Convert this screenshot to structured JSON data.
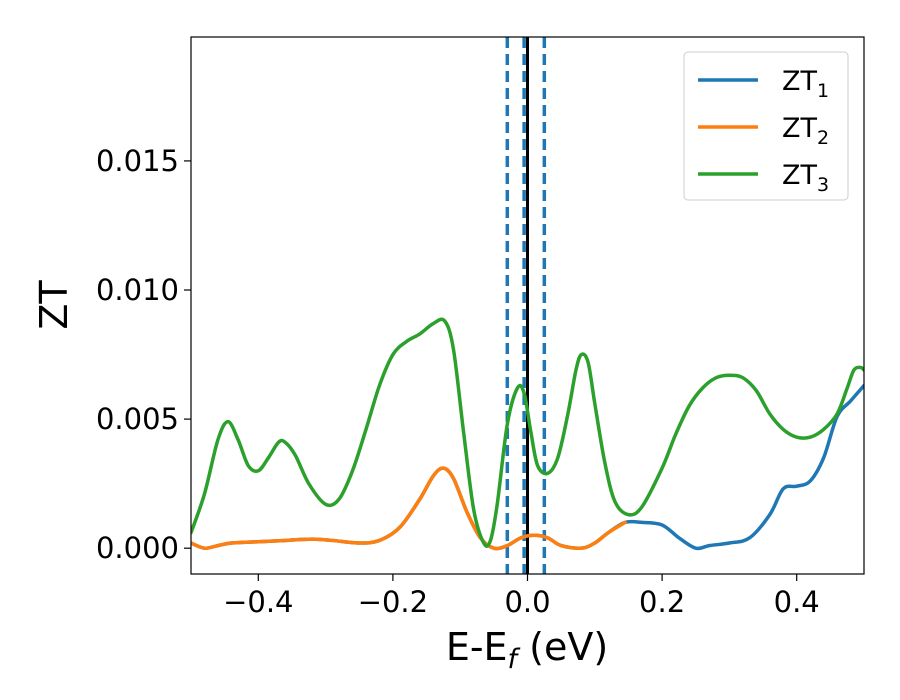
{
  "chart_data": {
    "type": "line",
    "title": "",
    "xlabel": "E-E",
    "xlabel_sub": "f",
    "xlabel_unit": " (eV)",
    "ylabel": "ZT",
    "xlim": [
      -0.5,
      0.5
    ],
    "ylim": [
      -0.001,
      0.0198
    ],
    "x_ticks": [
      -0.4,
      -0.2,
      0.0,
      0.2,
      0.4
    ],
    "x_tick_labels": [
      "−0.4",
      "−0.2",
      "0.0",
      "0.2",
      "0.4"
    ],
    "y_ticks": [
      0.0,
      0.005,
      0.01,
      0.015
    ],
    "y_tick_labels": [
      "0.000",
      "0.005",
      "0.010",
      "0.015"
    ],
    "grid": false,
    "legend_position": "top-right",
    "vertical_lines": [
      {
        "x": -0.03,
        "style": "dashed",
        "color": "#1f77b4"
      },
      {
        "x": 0.025,
        "style": "dashed",
        "color": "#1f77b4"
      },
      {
        "x": -0.005,
        "style": "dashed",
        "color": "#1f77b4"
      },
      {
        "x": 0.0,
        "style": "solid",
        "color": "#000000"
      }
    ],
    "series": [
      {
        "name": "ZT",
        "name_sub": "1",
        "color": "#1f77b4",
        "points": [
          [
            -0.5,
            0.0002
          ],
          [
            -0.48,
            0.0
          ],
          [
            -0.46,
            0.0001
          ],
          [
            -0.44,
            0.0002
          ],
          [
            -0.4,
            0.00025
          ],
          [
            -0.36,
            0.0003
          ],
          [
            -0.32,
            0.00035
          ],
          [
            -0.29,
            0.0003
          ],
          [
            -0.25,
            0.0002
          ],
          [
            -0.22,
            0.0003
          ],
          [
            -0.19,
            0.0008
          ],
          [
            -0.16,
            0.0019
          ],
          [
            -0.14,
            0.0028
          ],
          [
            -0.125,
            0.0031
          ],
          [
            -0.11,
            0.0027
          ],
          [
            -0.09,
            0.0014
          ],
          [
            -0.07,
            0.0004
          ],
          [
            -0.05,
            0.0
          ],
          [
            -0.03,
            0.0001
          ],
          [
            -0.01,
            0.0004
          ],
          [
            0.01,
            0.0005
          ],
          [
            0.03,
            0.0004
          ],
          [
            0.05,
            0.0001
          ],
          [
            0.08,
            0.0
          ],
          [
            0.1,
            0.0002
          ],
          [
            0.12,
            0.0006
          ],
          [
            0.145,
            0.001
          ],
          [
            0.17,
            0.001
          ],
          [
            0.2,
            0.0009
          ],
          [
            0.225,
            0.0004
          ],
          [
            0.25,
            0.0
          ],
          [
            0.27,
            0.0001
          ],
          [
            0.3,
            0.0002
          ],
          [
            0.33,
            0.0004
          ],
          [
            0.36,
            0.0013
          ],
          [
            0.38,
            0.0023
          ],
          [
            0.4,
            0.0024
          ],
          [
            0.42,
            0.0026
          ],
          [
            0.44,
            0.0035
          ],
          [
            0.46,
            0.0051
          ],
          [
            0.48,
            0.0057
          ],
          [
            0.5,
            0.0063
          ]
        ]
      },
      {
        "name": "ZT",
        "name_sub": "2",
        "color": "#ff7f0e",
        "points": [
          [
            -0.5,
            0.0002
          ],
          [
            -0.48,
            0.0
          ],
          [
            -0.46,
            0.0001
          ],
          [
            -0.44,
            0.0002
          ],
          [
            -0.4,
            0.00025
          ],
          [
            -0.36,
            0.0003
          ],
          [
            -0.32,
            0.00035
          ],
          [
            -0.29,
            0.0003
          ],
          [
            -0.25,
            0.0002
          ],
          [
            -0.22,
            0.0003
          ],
          [
            -0.19,
            0.0008
          ],
          [
            -0.16,
            0.0019
          ],
          [
            -0.14,
            0.0028
          ],
          [
            -0.125,
            0.0031
          ],
          [
            -0.11,
            0.0027
          ],
          [
            -0.09,
            0.0014
          ],
          [
            -0.07,
            0.0004
          ],
          [
            -0.05,
            0.0
          ],
          [
            -0.03,
            0.0001
          ],
          [
            -0.01,
            0.0004
          ],
          [
            0.01,
            0.0005
          ],
          [
            0.03,
            0.0004
          ],
          [
            0.05,
            0.0001
          ],
          [
            0.08,
            0.0
          ],
          [
            0.1,
            0.0002
          ],
          [
            0.12,
            0.0006
          ],
          [
            0.145,
            0.001
          ]
        ]
      },
      {
        "name": "ZT",
        "name_sub": "3",
        "color": "#2ca02c",
        "points": [
          [
            -0.5,
            0.0006
          ],
          [
            -0.48,
            0.0021
          ],
          [
            -0.46,
            0.0042
          ],
          [
            -0.445,
            0.0049
          ],
          [
            -0.43,
            0.0042
          ],
          [
            -0.415,
            0.0032
          ],
          [
            -0.4,
            0.003
          ],
          [
            -0.385,
            0.0035
          ],
          [
            -0.37,
            0.0041
          ],
          [
            -0.36,
            0.0041
          ],
          [
            -0.345,
            0.0036
          ],
          [
            -0.325,
            0.0025
          ],
          [
            -0.3,
            0.0017
          ],
          [
            -0.28,
            0.0019
          ],
          [
            -0.26,
            0.003
          ],
          [
            -0.24,
            0.0046
          ],
          [
            -0.22,
            0.0063
          ],
          [
            -0.2,
            0.0075
          ],
          [
            -0.18,
            0.008
          ],
          [
            -0.16,
            0.0083
          ],
          [
            -0.14,
            0.0087
          ],
          [
            -0.123,
            0.0088
          ],
          [
            -0.11,
            0.0077
          ],
          [
            -0.095,
            0.0045
          ],
          [
            -0.08,
            0.0015
          ],
          [
            -0.065,
            0.0002
          ],
          [
            -0.055,
            0.0003
          ],
          [
            -0.045,
            0.0017
          ],
          [
            -0.03,
            0.0048
          ],
          [
            -0.015,
            0.0062
          ],
          [
            -0.005,
            0.006
          ],
          [
            0.005,
            0.0045
          ],
          [
            0.015,
            0.0032
          ],
          [
            0.03,
            0.0029
          ],
          [
            0.045,
            0.0035
          ],
          [
            0.06,
            0.0052
          ],
          [
            0.072,
            0.0069
          ],
          [
            0.08,
            0.0075
          ],
          [
            0.09,
            0.0072
          ],
          [
            0.1,
            0.0056
          ],
          [
            0.115,
            0.0033
          ],
          [
            0.13,
            0.0018
          ],
          [
            0.15,
            0.0013
          ],
          [
            0.17,
            0.0016
          ],
          [
            0.2,
            0.0031
          ],
          [
            0.22,
            0.0044
          ],
          [
            0.24,
            0.0055
          ],
          [
            0.26,
            0.0062
          ],
          [
            0.28,
            0.0066
          ],
          [
            0.3,
            0.0067
          ],
          [
            0.32,
            0.0066
          ],
          [
            0.34,
            0.0061
          ],
          [
            0.36,
            0.0052
          ],
          [
            0.38,
            0.0046
          ],
          [
            0.4,
            0.0043
          ],
          [
            0.42,
            0.0043
          ],
          [
            0.44,
            0.0046
          ],
          [
            0.46,
            0.0052
          ],
          [
            0.475,
            0.0062
          ],
          [
            0.485,
            0.0069
          ],
          [
            0.495,
            0.007
          ],
          [
            0.5,
            0.0069
          ]
        ]
      }
    ]
  }
}
